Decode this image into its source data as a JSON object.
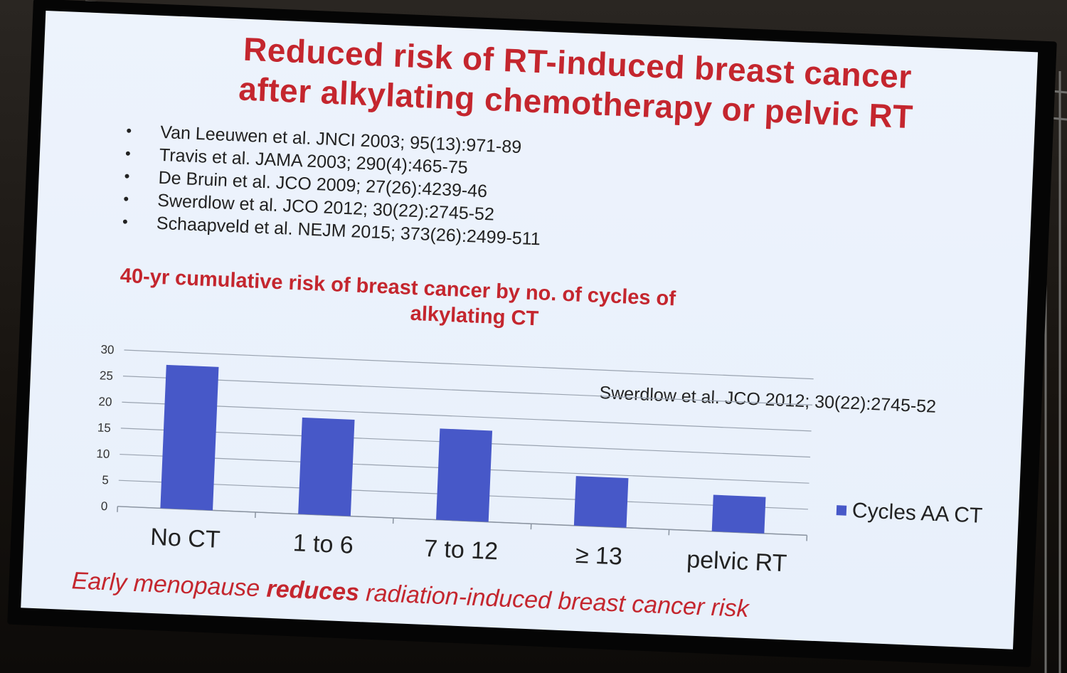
{
  "slide": {
    "title_line1": "Reduced risk of RT-induced breast cancer",
    "title_line2": "after alkylating chemotherapy or pelvic RT",
    "references": [
      "Van Leeuwen et al. JNCI 2003; 95(13):971-89",
      "Travis et al. JAMA 2003; 290(4):465-75",
      "De Bruin et al. JCO 2009; 27(26):4239-46",
      "Swerdlow et al. JCO 2012; 30(22):2745-52",
      "Schaapveld et al. NEJM 2015; 373(26):2499-511"
    ],
    "chart_title_line1": "40-yr cumulative risk of breast cancer by no. of cycles of",
    "chart_title_line2": "alkylating  CT",
    "source_note": "Swerdlow et al. JCO 2012; 30(22):2745-52",
    "footer_pre": "Early menopause ",
    "footer_bold": "reduces",
    "footer_post": " radiation-induced breast cancer risk"
  },
  "colors": {
    "title_red": "#c4262e",
    "bar_blue": "#4758c8",
    "slide_bg": "#eaf1fb"
  },
  "chart_data": {
    "type": "bar",
    "title": "40-yr cumulative risk of breast cancer by no. of cycles of alkylating  CT",
    "categories": [
      "No CT",
      "1 to 6",
      "7 to 12",
      "≥ 13",
      "pelvic RT"
    ],
    "series": [
      {
        "name": "Cycles AA CT",
        "values": [
          27.5,
          18.5,
          17.5,
          9.5,
          7
        ]
      }
    ],
    "ylim": [
      0,
      30
    ],
    "yticks": [
      "0",
      "5",
      "10",
      "15",
      "20",
      "25",
      "30"
    ],
    "grid": true,
    "legend": "right"
  }
}
